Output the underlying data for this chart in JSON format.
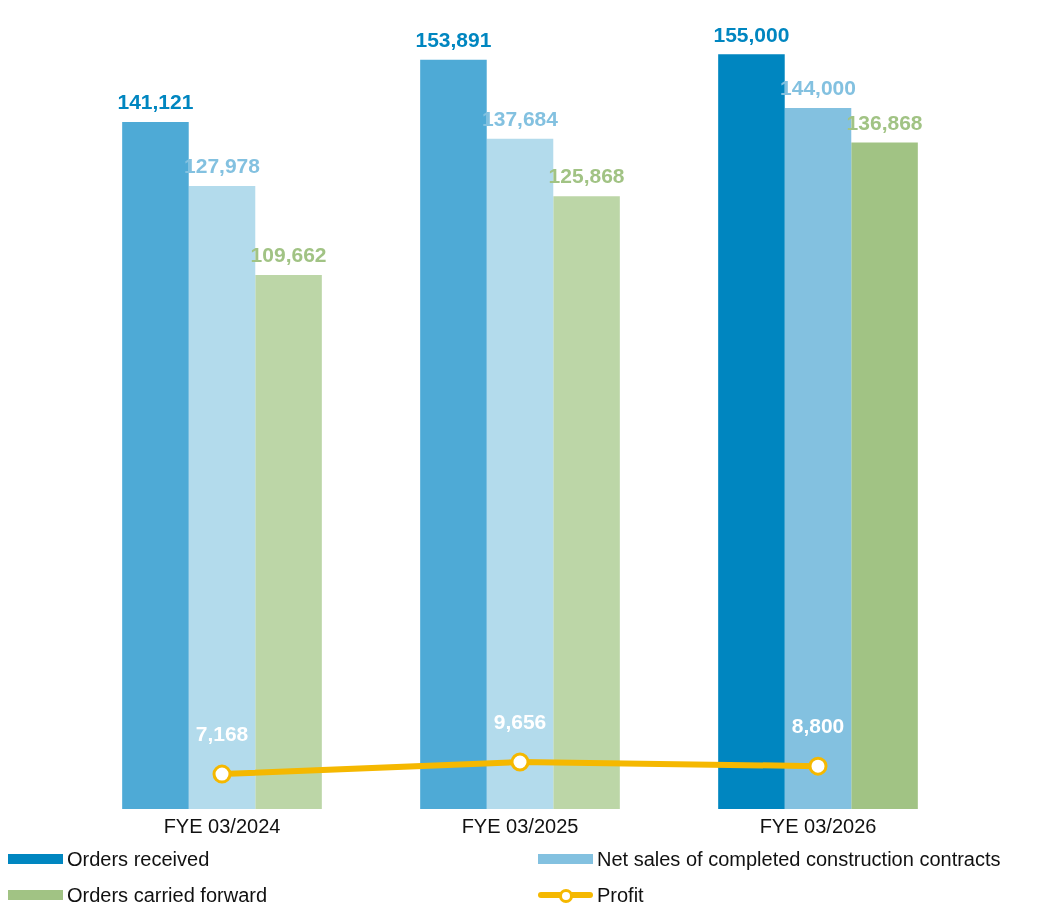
{
  "chart_data": {
    "type": "bar",
    "categories": [
      "FYE 03/2024",
      "FYE 03/2025",
      "FYE 03/2026"
    ],
    "series": [
      {
        "name": "Orders received",
        "color": "#0086c0",
        "colors": [
          "#4eaad6",
          "#4eaad6",
          "#0086c0"
        ],
        "values": [
          141121,
          153891,
          155000
        ],
        "value_labels": [
          "141,121",
          "153,891",
          "155,000"
        ]
      },
      {
        "name": "Net sales of completed construction contracts",
        "color": "#83c1e0",
        "colors": [
          "#b3dbec",
          "#b3dbec",
          "#83c1e0"
        ],
        "values": [
          127978,
          137684,
          144000
        ],
        "value_labels": [
          "127,978",
          "137,684",
          "144,000"
        ]
      },
      {
        "name": "Orders carried forward",
        "color": "#a1c384",
        "colors": [
          "#bcd6a7",
          "#bcd6a7",
          "#a1c384"
        ],
        "values": [
          109662,
          125868,
          136868
        ],
        "value_labels": [
          "109,662",
          "125,868",
          "136,868"
        ]
      },
      {
        "name": "Profit",
        "type": "line",
        "color": "#f5b800",
        "values": [
          7168,
          9656,
          8800
        ],
        "value_labels": [
          "7,168",
          "9,656",
          "8,800"
        ]
      }
    ],
    "legend": "bottom",
    "marker": "circle",
    "grid": false
  }
}
